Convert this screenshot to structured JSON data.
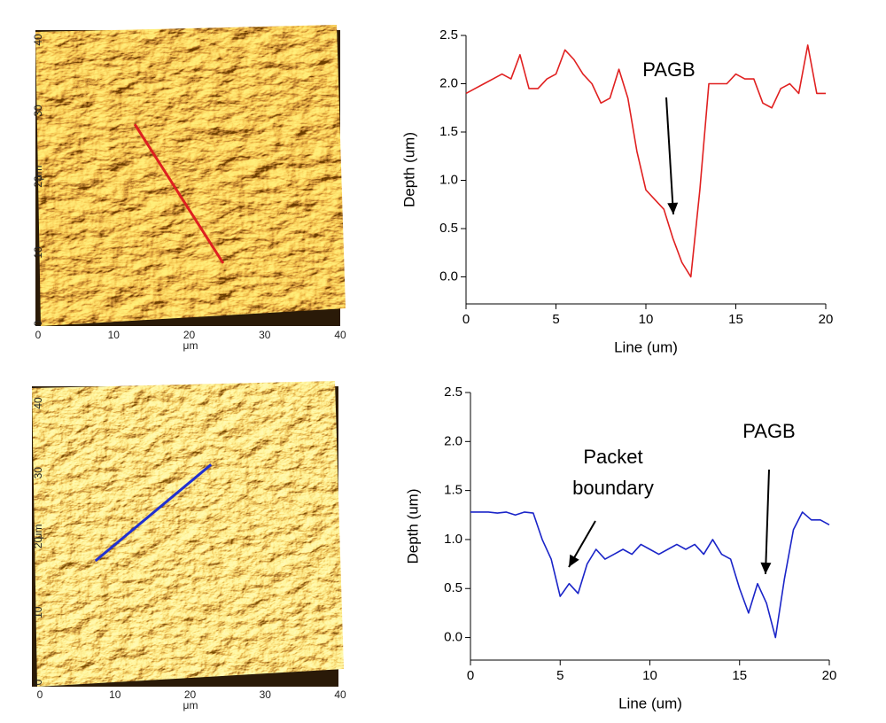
{
  "chart_data": [
    {
      "type": "afm",
      "xlim": [
        0,
        40
      ],
      "xticks": [
        0,
        10,
        20,
        30,
        40
      ],
      "ylim": [
        0,
        40
      ],
      "yticks": [
        0,
        10,
        20,
        30,
        40
      ],
      "xlabel": "μm",
      "ylabel": "μm",
      "color": "#dd2020",
      "profile_line": {
        "x": [
          12.8,
          24.5
        ],
        "y": [
          28.1,
          8.5
        ]
      }
    },
    {
      "type": "line",
      "xlabel": "Line (um)",
      "ylabel": "Depth (um)",
      "xlim": [
        0,
        20
      ],
      "xticks": [
        0,
        5,
        10,
        15,
        20
      ],
      "ylim": [
        -0.28,
        2.5
      ],
      "yticks": [
        {
          "value": 0,
          "label": "0.0"
        },
        0.5,
        {
          "value": 1,
          "label": "1.0"
        },
        1.5,
        {
          "value": 2,
          "label": "2.0"
        },
        2.5
      ],
      "annotations": [
        {
          "text": [
            "PAGB"
          ]
        }
      ],
      "x": [
        0,
        0.5,
        1,
        1.5,
        2,
        2.5,
        3,
        3.5,
        4,
        4.5,
        5,
        5.5,
        6,
        6.5,
        7,
        7.5,
        8,
        8.5,
        9,
        9.5,
        10,
        10.5,
        11,
        11.5,
        12,
        12.5,
        13,
        13.5,
        14,
        14.5,
        15,
        15.5,
        16,
        16.5,
        17,
        17.5,
        18,
        18.5,
        19,
        19.5,
        20
      ],
      "series": [
        {
          "color": "#e02020",
          "values": [
            1.9,
            1.95,
            2.0,
            2.05,
            2.1,
            2.05,
            2.3,
            1.95,
            1.95,
            2.05,
            2.1,
            2.35,
            2.25,
            2.1,
            2.0,
            1.8,
            1.85,
            2.15,
            1.85,
            1.3,
            0.9,
            0.8,
            0.7,
            0.4,
            0.15,
            0.0,
            0.9,
            2.0,
            2.0,
            2.0,
            2.1,
            2.05,
            2.05,
            1.8,
            1.75,
            1.95,
            2.0,
            1.9,
            2.4,
            1.9,
            1.9
          ]
        }
      ]
    },
    {
      "type": "afm",
      "xlim": [
        0,
        40
      ],
      "xticks": [
        0,
        10,
        20,
        30,
        40
      ],
      "ylim": [
        0,
        40
      ],
      "yticks": [
        0,
        10,
        20,
        30,
        40
      ],
      "xlabel": "μm",
      "ylabel": "μm",
      "color": "#2030d0",
      "profile_line": {
        "x": [
          7.4,
          22.8
        ],
        "y": [
          17.4,
          31.2
        ]
      }
    },
    {
      "type": "line",
      "xlabel": "Line (um)",
      "ylabel": "Depth (um)",
      "xlim": [
        0,
        20
      ],
      "xticks": [
        0,
        5,
        10,
        15,
        20
      ],
      "ylim": [
        -0.23,
        2.5
      ],
      "yticks": [
        {
          "value": 0,
          "label": "0.0"
        },
        0.5,
        {
          "value": 1,
          "label": "1.0"
        },
        1.5,
        {
          "value": 2,
          "label": "2.0"
        },
        2.5
      ],
      "annotations": [
        {
          "text": [
            "Packet",
            "boundary"
          ]
        },
        {
          "text": [
            "PAGB"
          ]
        }
      ],
      "x": [
        0,
        0.5,
        1,
        1.5,
        2,
        2.5,
        3,
        3.5,
        4,
        4.5,
        5,
        5.5,
        6,
        6.5,
        7,
        7.5,
        8,
        8.5,
        9,
        9.5,
        10,
        10.5,
        11,
        11.5,
        12,
        12.5,
        13,
        13.5,
        14,
        14.5,
        15,
        15.5,
        16,
        16.5,
        17,
        17.5,
        18,
        18.5,
        19,
        19.5,
        20
      ],
      "series": [
        {
          "color": "#1a24c8",
          "values": [
            1.28,
            1.28,
            1.28,
            1.27,
            1.28,
            1.25,
            1.28,
            1.27,
            1.0,
            0.8,
            0.42,
            0.55,
            0.45,
            0.75,
            0.9,
            0.8,
            0.85,
            0.9,
            0.85,
            0.95,
            0.9,
            0.85,
            0.9,
            0.95,
            0.9,
            0.95,
            0.85,
            1.0,
            0.85,
            0.8,
            0.5,
            0.25,
            0.55,
            0.35,
            0.0,
            0.6,
            1.1,
            1.28,
            1.2,
            1.2,
            1.15
          ]
        }
      ]
    }
  ]
}
